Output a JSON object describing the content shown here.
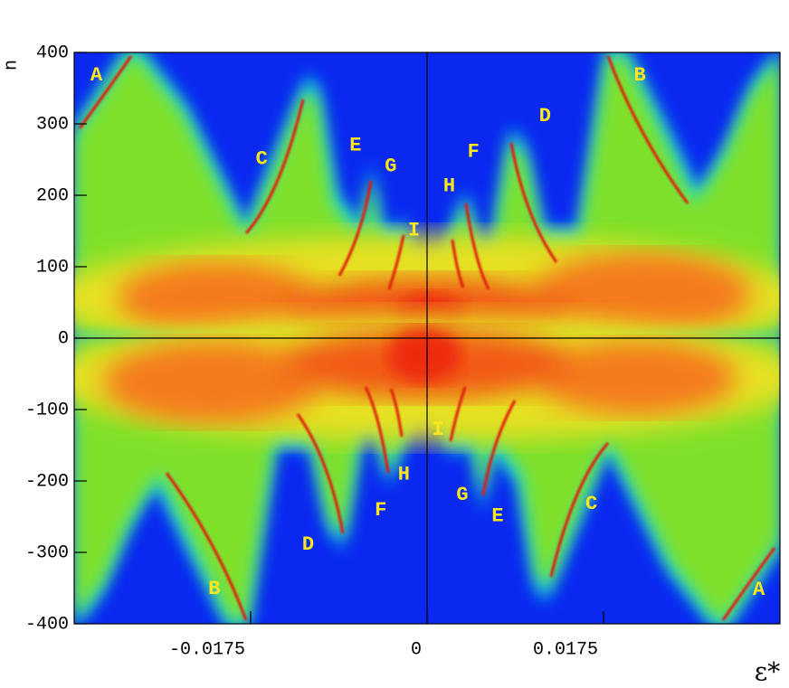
{
  "chart_data": {
    "type": "heatmap",
    "x_label": "ε*",
    "y_label": "n",
    "xlim": [
      -0.035,
      0.035
    ],
    "ylim": [
      -400,
      400
    ],
    "xticks": [
      -0.0175,
      0,
      0.0175
    ],
    "yticks": [
      -400,
      -300,
      -200,
      -100,
      0,
      100,
      200,
      300,
      400
    ],
    "annotations": [
      {
        "text": "A",
        "x": -0.0328,
        "y": 368
      },
      {
        "text": "B",
        "x": 0.0211,
        "y": 368
      },
      {
        "text": "C",
        "x": -0.0164,
        "y": 251
      },
      {
        "text": "D",
        "x": 0.0117,
        "y": 311
      },
      {
        "text": "E",
        "x": -0.0071,
        "y": 270
      },
      {
        "text": "F",
        "x": 0.0046,
        "y": 261
      },
      {
        "text": "G",
        "x": -0.0036,
        "y": 241
      },
      {
        "text": "H",
        "x": 0.0022,
        "y": 213
      },
      {
        "text": "I",
        "x": -0.0013,
        "y": 151
      },
      {
        "text": "I",
        "x": 0.0011,
        "y": -128
      },
      {
        "text": "H",
        "x": -0.0023,
        "y": -191
      },
      {
        "text": "G",
        "x": 0.0035,
        "y": -219
      },
      {
        "text": "F",
        "x": -0.0046,
        "y": -241
      },
      {
        "text": "E",
        "x": 0.007,
        "y": -249
      },
      {
        "text": "D",
        "x": -0.0118,
        "y": -289
      },
      {
        "text": "C",
        "x": 0.0163,
        "y": -232
      },
      {
        "text": "B",
        "x": -0.0211,
        "y": -351
      },
      {
        "text": "A",
        "x": 0.0329,
        "y": -352
      }
    ]
  }
}
